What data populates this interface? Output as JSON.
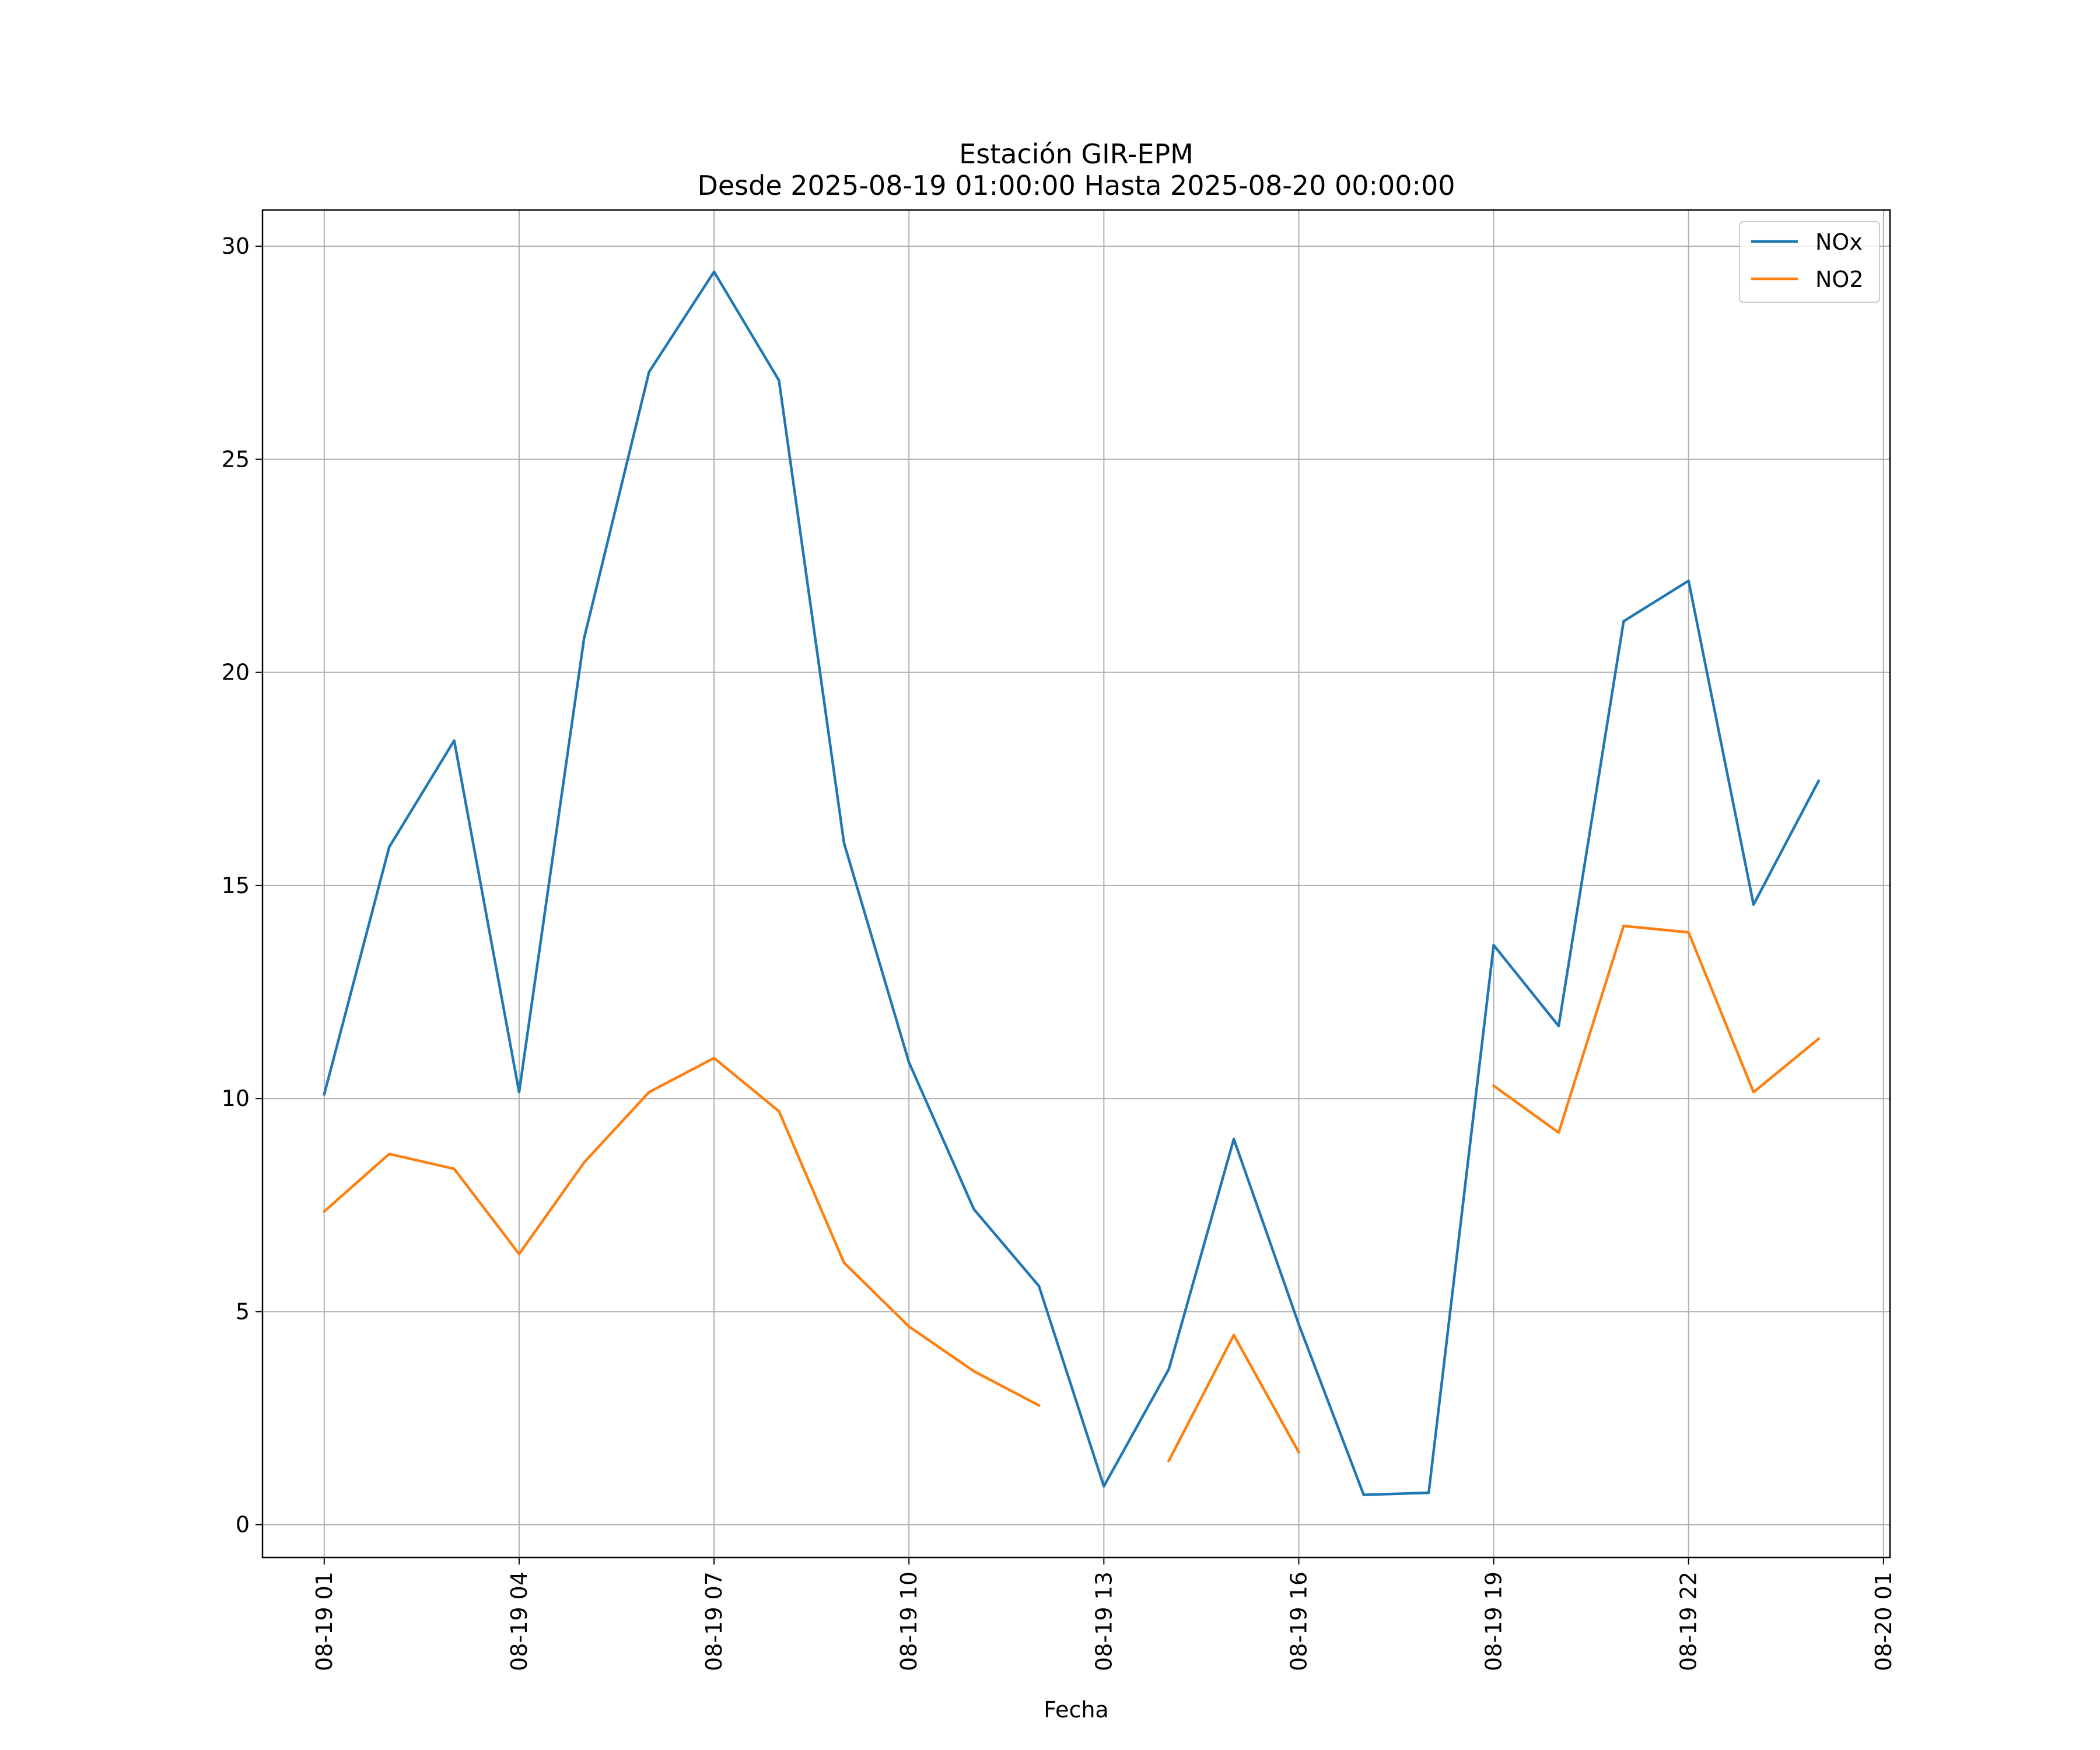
{
  "chart_data": {
    "type": "line",
    "title": "Estación GIR-EPM",
    "subtitle": "Desde 2025-08-19 01:00:00 Hasta 2025-08-20 00:00:00",
    "xlabel": "Fecha",
    "ylabel": "",
    "x_ticks": [
      "08-19 01",
      "08-19 04",
      "08-19 07",
      "08-19 10",
      "08-19 13",
      "08-19 16",
      "08-19 19",
      "08-19 22",
      "08-20 01"
    ],
    "x_tick_hours": [
      1,
      4,
      7,
      10,
      13,
      16,
      19,
      22,
      25
    ],
    "y_ticks": [
      0,
      5,
      10,
      15,
      20,
      25,
      30
    ],
    "ylim": [
      -0.77,
      30.85
    ],
    "xlim_hours": [
      0.05,
      25.1
    ],
    "grid": true,
    "legend_position": "top-right",
    "hours": [
      1,
      2,
      3,
      4,
      5,
      6,
      7,
      8,
      9,
      10,
      11,
      12,
      13,
      14,
      15,
      16,
      17,
      18,
      19,
      20,
      21,
      22,
      23,
      24
    ],
    "series": [
      {
        "name": "NOx",
        "color": "#1f77b4",
        "values": [
          10.1,
          15.9,
          18.4,
          10.15,
          20.8,
          27.05,
          29.4,
          26.85,
          16.0,
          10.85,
          7.4,
          5.6,
          0.9,
          3.65,
          9.05,
          4.7,
          0.7,
          0.75,
          13.6,
          11.7,
          21.2,
          22.15,
          14.55,
          17.45
        ]
      },
      {
        "name": "NO2",
        "color": "#ff7f0e",
        "values": [
          7.35,
          8.7,
          8.35,
          6.35,
          8.5,
          10.15,
          10.95,
          9.7,
          6.15,
          4.65,
          3.6,
          2.8,
          null,
          1.5,
          4.45,
          1.7,
          null,
          null,
          10.3,
          9.2,
          14.05,
          13.9,
          10.15,
          11.4
        ]
      }
    ]
  }
}
